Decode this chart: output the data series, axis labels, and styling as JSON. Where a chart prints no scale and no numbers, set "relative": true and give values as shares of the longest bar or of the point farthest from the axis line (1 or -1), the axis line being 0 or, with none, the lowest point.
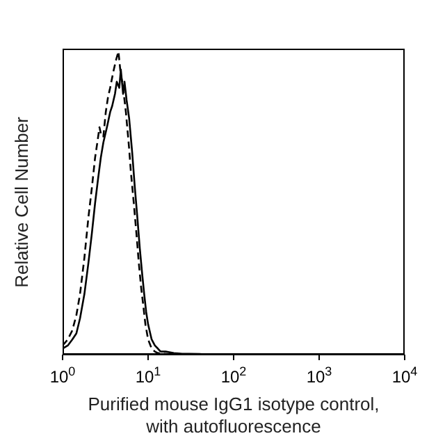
{
  "chart_data": {
    "type": "line",
    "relative": true,
    "log": "x",
    "xlabel": "Purified mouse IgG1 isotype control, with autofluorescence",
    "ylabel": "Relative Cell Number",
    "xlim": [
      1,
      10000
    ],
    "xticks": [
      {
        "value": 1,
        "label": "10$^{0}$"
      },
      {
        "value": 10,
        "label": "10$^{1}$"
      },
      {
        "value": 100,
        "label": "10$^{2}$"
      },
      {
        "value": 1000,
        "label": "10$^{3}$"
      },
      {
        "value": 10000,
        "label": "10$^{4}$"
      }
    ],
    "grid": false,
    "marker": "none",
    "series": [
      {
        "color": "#000000",
        "line_style": "solid",
        "x": [
          1.0,
          1.15,
          1.3,
          1.45,
          1.6,
          1.8,
          2.0,
          2.2,
          2.4,
          2.6,
          2.8,
          3.0,
          3.3,
          3.6,
          3.8,
          4.1,
          4.3,
          4.6,
          4.8,
          5.1,
          5.3,
          5.6,
          6.0,
          6.5,
          7.0,
          7.5,
          8.0,
          8.5,
          9.0,
          9.5,
          10,
          11,
          12,
          13,
          14,
          16,
          20,
          25,
          30,
          40,
          50
        ],
        "values": [
          0.02,
          0.03,
          0.05,
          0.07,
          0.12,
          0.2,
          0.3,
          0.4,
          0.5,
          0.58,
          0.65,
          0.7,
          0.75,
          0.8,
          0.82,
          0.86,
          0.9,
          0.88,
          0.94,
          0.86,
          0.9,
          0.84,
          0.78,
          0.67,
          0.55,
          0.45,
          0.35,
          0.27,
          0.2,
          0.14,
          0.1,
          0.05,
          0.03,
          0.02,
          0.01,
          0.01,
          0.005,
          0.003,
          0.003,
          0.002,
          0
        ]
      },
      {
        "color": "#000000",
        "line_style": "dashed",
        "x": [
          1.0,
          1.15,
          1.3,
          1.45,
          1.6,
          1.8,
          2.0,
          2.2,
          2.4,
          2.55,
          2.7,
          2.85,
          3.0,
          3.2,
          3.4,
          3.6,
          3.9,
          4.2,
          4.5,
          4.8,
          5.0,
          5.5,
          6.0,
          6.3,
          6.8,
          7.3,
          7.8,
          8.3,
          8.8,
          9.3,
          10,
          11,
          12,
          13,
          15,
          20
        ],
        "values": [
          0.03,
          0.05,
          0.08,
          0.13,
          0.2,
          0.32,
          0.45,
          0.55,
          0.65,
          0.7,
          0.75,
          0.72,
          0.72,
          0.8,
          0.85,
          0.88,
          0.93,
          0.97,
          1.0,
          0.92,
          0.9,
          0.8,
          0.68,
          0.6,
          0.5,
          0.4,
          0.3,
          0.22,
          0.16,
          0.1,
          0.05,
          0.02,
          0.01,
          0.005,
          0.003,
          0
        ]
      }
    ]
  }
}
